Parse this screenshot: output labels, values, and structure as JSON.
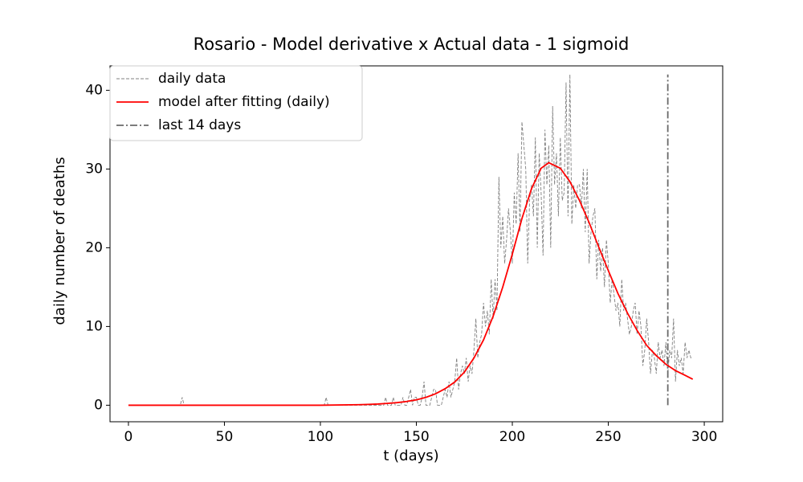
{
  "chart_data": {
    "type": "line",
    "title": "Rosario - Model derivative x Actual data - 1 sigmoid",
    "x_label": "t (days)",
    "y_label": "daily number of deaths",
    "xlim": [
      -9.6,
      309.6
    ],
    "ylim": [
      -2.1,
      43.1
    ],
    "xticks": [
      0,
      50,
      100,
      150,
      200,
      250,
      300
    ],
    "yticks": [
      0,
      10,
      20,
      30,
      40
    ],
    "grid": false,
    "legend": "upper left",
    "series": [
      {
        "name": "daily data",
        "color": "#808080",
        "linestyle": "dashed",
        "x": [
          0,
          1,
          2,
          3,
          4,
          5,
          6,
          7,
          8,
          9,
          10,
          11,
          12,
          13,
          14,
          15,
          16,
          17,
          18,
          19,
          20,
          21,
          22,
          23,
          24,
          25,
          26,
          27,
          28,
          29,
          30,
          31,
          32,
          33,
          34,
          35,
          36,
          37,
          38,
          39,
          40,
          41,
          42,
          43,
          44,
          45,
          46,
          47,
          48,
          49,
          50,
          51,
          52,
          53,
          54,
          55,
          56,
          57,
          58,
          59,
          60,
          61,
          62,
          63,
          64,
          65,
          66,
          67,
          68,
          69,
          70,
          71,
          72,
          73,
          74,
          75,
          76,
          77,
          78,
          79,
          80,
          81,
          82,
          83,
          84,
          85,
          86,
          87,
          88,
          89,
          90,
          91,
          92,
          93,
          94,
          95,
          96,
          97,
          98,
          99,
          100,
          101,
          102,
          103,
          104,
          105,
          106,
          107,
          108,
          109,
          110,
          111,
          112,
          113,
          114,
          115,
          116,
          117,
          118,
          119,
          120,
          121,
          122,
          123,
          124,
          125,
          126,
          127,
          128,
          129,
          130,
          131,
          132,
          133,
          134,
          135,
          136,
          137,
          138,
          139,
          140,
          141,
          142,
          143,
          144,
          145,
          146,
          147,
          148,
          149,
          150,
          151,
          152,
          153,
          154,
          155,
          156,
          157,
          158,
          159,
          160,
          161,
          162,
          163,
          164,
          165,
          166,
          167,
          168,
          169,
          170,
          171,
          172,
          173,
          174,
          175,
          176,
          177,
          178,
          179,
          180,
          181,
          182,
          183,
          184,
          185,
          186,
          187,
          188,
          189,
          190,
          191,
          192,
          193,
          194,
          195,
          196,
          197,
          198,
          199,
          200,
          201,
          202,
          203,
          204,
          205,
          206,
          207,
          208,
          209,
          210,
          211,
          212,
          213,
          214,
          215,
          216,
          217,
          218,
          219,
          220,
          221,
          222,
          223,
          224,
          225,
          226,
          227,
          228,
          229,
          230,
          231,
          232,
          233,
          234,
          235,
          236,
          237,
          238,
          239,
          240,
          241,
          242,
          243,
          244,
          245,
          246,
          247,
          248,
          249,
          250,
          251,
          252,
          253,
          254,
          255,
          256,
          257,
          258,
          259,
          260,
          261,
          262,
          263,
          264,
          265,
          266,
          267,
          268,
          269,
          270,
          271,
          272,
          273,
          274,
          275,
          276,
          277,
          278,
          279,
          280,
          281,
          282,
          283,
          284,
          285,
          286,
          287,
          288,
          289,
          290,
          291,
          292,
          293,
          294
        ],
        "values": [
          0,
          0,
          0,
          0,
          0,
          0,
          0,
          0,
          0,
          0,
          0,
          0,
          0,
          0,
          0,
          0,
          0,
          0,
          0,
          0,
          0,
          0,
          0,
          0,
          0,
          0,
          0,
          0,
          1,
          0,
          0,
          0,
          0,
          0,
          0,
          0,
          0,
          0,
          0,
          0,
          0,
          0,
          0,
          0,
          0,
          0,
          0,
          0,
          0,
          0,
          0,
          0,
          0,
          0,
          0,
          0,
          0,
          0,
          0,
          0,
          0,
          0,
          0,
          0,
          0,
          0,
          0,
          0,
          0,
          0,
          0,
          0,
          0,
          0,
          0,
          0,
          0,
          0,
          0,
          0,
          0,
          0,
          0,
          0,
          0,
          0,
          0,
          0,
          0,
          0,
          0,
          0,
          0,
          0,
          0,
          0,
          0,
          0,
          0,
          0,
          0,
          0,
          0,
          1,
          0,
          0,
          0,
          0,
          0,
          0,
          0,
          0,
          0,
          0,
          0,
          0,
          0,
          0,
          0,
          0,
          0,
          0,
          0,
          0,
          0,
          0,
          0,
          0,
          0,
          0,
          0,
          0,
          0,
          0,
          1,
          0,
          0,
          0,
          1,
          0,
          0,
          0,
          0,
          1,
          0,
          0,
          1,
          2,
          0,
          1,
          1,
          0,
          0,
          1,
          3,
          0,
          0,
          0,
          1,
          2,
          2,
          0,
          0,
          0,
          1,
          2,
          1,
          3,
          1,
          2,
          3,
          6,
          2,
          4,
          5,
          4,
          6,
          3,
          5,
          4,
          7,
          11,
          6,
          8,
          9,
          13,
          10,
          12,
          9,
          16,
          11,
          16,
          12,
          29,
          20,
          24,
          18,
          21,
          25,
          22,
          18,
          27,
          23,
          32,
          22,
          36,
          33,
          30,
          18,
          26,
          28,
          24,
          34,
          20,
          32,
          27,
          19,
          35,
          28,
          33,
          20,
          38,
          28,
          32,
          24,
          34,
          26,
          27,
          41,
          24,
          42,
          23,
          28,
          25,
          28,
          28,
          25,
          30,
          22,
          30,
          18,
          22,
          24,
          25,
          16,
          21,
          17,
          20,
          15,
          21,
          18,
          13,
          16,
          14,
          12,
          13,
          10,
          16,
          12,
          13,
          11,
          9,
          10,
          12,
          13,
          9,
          12,
          10,
          5,
          7,
          11,
          8,
          4,
          7,
          6,
          4,
          8,
          6,
          7,
          5,
          8,
          4,
          7,
          6,
          11,
          3,
          7,
          5,
          6,
          4,
          8,
          6,
          7,
          6,
          6
        ]
      },
      {
        "name": "model after fitting (daily)",
        "color": "#ff0000",
        "linestyle": "solid",
        "x": [
          0,
          20,
          40,
          60,
          80,
          100,
          120,
          125,
          130,
          135,
          140,
          145,
          150,
          155,
          160,
          165,
          170,
          175,
          180,
          185,
          190,
          195,
          200,
          205,
          210,
          215,
          219,
          225,
          230,
          235,
          240,
          245,
          250,
          255,
          260,
          265,
          270,
          275,
          280,
          285,
          290,
          294
        ],
        "values": [
          0,
          0,
          0,
          0,
          0,
          0,
          0.07,
          0.11,
          0.15,
          0.23,
          0.33,
          0.48,
          0.68,
          1.0,
          1.45,
          2.1,
          2.95,
          4.2,
          6.0,
          8.3,
          11.3,
          15.0,
          19.2,
          23.7,
          27.5,
          30.1,
          30.8,
          30.1,
          28.4,
          26.0,
          23.2,
          20.1,
          17.1,
          14.2,
          11.7,
          9.5,
          7.6,
          6.3,
          5.2,
          4.4,
          3.8,
          3.3
        ]
      },
      {
        "name": "last 14 days",
        "color": "#696969",
        "linestyle": "dashdot",
        "x": [
          281,
          281
        ],
        "values": [
          0,
          42
        ]
      }
    ]
  }
}
